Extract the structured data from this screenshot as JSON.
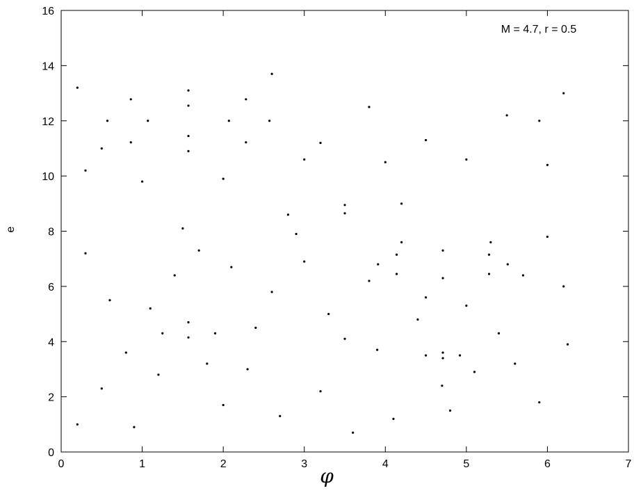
{
  "chart_data": {
    "type": "scatter",
    "annotation": "M = 4.7, r = 0.5",
    "x_label": "φ",
    "y_label": "e",
    "xlim": [
      0,
      7
    ],
    "ylim": [
      0,
      16
    ],
    "xticks": [
      0,
      1,
      2,
      3,
      4,
      5,
      6,
      7
    ],
    "yticks": [
      0,
      2,
      4,
      6,
      8,
      10,
      12,
      14,
      16
    ],
    "color": "#000000",
    "x": [
      0.2,
      0.5,
      0.8,
      1.1,
      1.4,
      1.7,
      2.0,
      2.3,
      2.6,
      2.9,
      3.2,
      3.5,
      3.8,
      4.1,
      4.4,
      4.7,
      5.0,
      5.3,
      5.6,
      5.9,
      6.2,
      0.3,
      0.6,
      0.9,
      1.2,
      1.5,
      1.8,
      2.1,
      2.4,
      2.7,
      3.0,
      3.3,
      3.6,
      3.9,
      4.2,
      4.5,
      4.8,
      5.1,
      5.4,
      5.7,
      6.0,
      6.25,
      0.57,
      1.57,
      2.57,
      1.57,
      0.86,
      2.28,
      2.28,
      0.86,
      1.07,
      1.57,
      2.07,
      1.57,
      3.91,
      4.71,
      5.51,
      4.71,
      4.14,
      5.28,
      5.28,
      4.14,
      2.8,
      3.5,
      4.2,
      3.5,
      1.25,
      1.57,
      1.9,
      1.57,
      4.5,
      4.71,
      4.92,
      4.71,
      0.3,
      1.0,
      2.0,
      3.0,
      4.0,
      5.0,
      6.0,
      0.2,
      2.6,
      3.8,
      5.5,
      6.2,
      5.9,
      0.5,
      3.2,
      4.5
    ],
    "y": [
      1.0,
      2.3,
      3.6,
      5.2,
      6.4,
      7.3,
      1.7,
      3.0,
      5.8,
      7.9,
      2.2,
      4.1,
      6.2,
      1.2,
      4.8,
      2.4,
      5.3,
      7.6,
      3.2,
      1.8,
      6.0,
      7.2,
      5.5,
      0.9,
      2.8,
      8.1,
      3.2,
      6.7,
      4.5,
      1.3,
      6.9,
      5.0,
      0.7,
      3.7,
      7.6,
      5.6,
      1.5,
      2.9,
      4.3,
      6.4,
      7.8,
      3.9,
      12,
      13.1,
      12,
      10.9,
      12.78,
      12.78,
      11.22,
      11.22,
      12,
      12.55,
      12,
      11.45,
      6.8,
      7.3,
      6.8,
      6.3,
      7.15,
      7.15,
      6.45,
      6.45,
      8.6,
      8.95,
      9.0,
      8.65,
      4.3,
      4.7,
      4.3,
      4.15,
      3.5,
      3.6,
      3.5,
      3.4,
      10.2,
      9.8,
      9.9,
      10.6,
      10.5,
      10.6,
      10.4,
      13.2,
      13.7,
      12.5,
      12.2,
      13.0,
      12.0,
      11.0,
      11.2,
      11.3
    ]
  }
}
